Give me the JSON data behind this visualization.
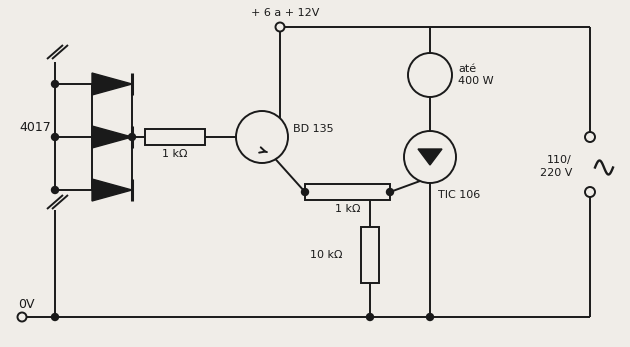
{
  "background_color": "#f0ede8",
  "line_color": "#1a1a1a",
  "text_color": "#1a1a1a",
  "figsize": [
    6.3,
    3.47
  ],
  "dpi": 100,
  "ic_label": "4017",
  "transistor_label": "BD 135",
  "scr_label": "TIC 106",
  "r1_label": "1 kΩ",
  "r2_label": "1 kΩ",
  "r3_label": "10 kΩ",
  "voltage_label": "+ 6 a + 12V",
  "ac_label": "110/\n220 V",
  "lamp_label": "até\n400 W",
  "gnd_label": "0V",
  "xlim": [
    0,
    630
  ],
  "ylim": [
    0,
    347
  ]
}
